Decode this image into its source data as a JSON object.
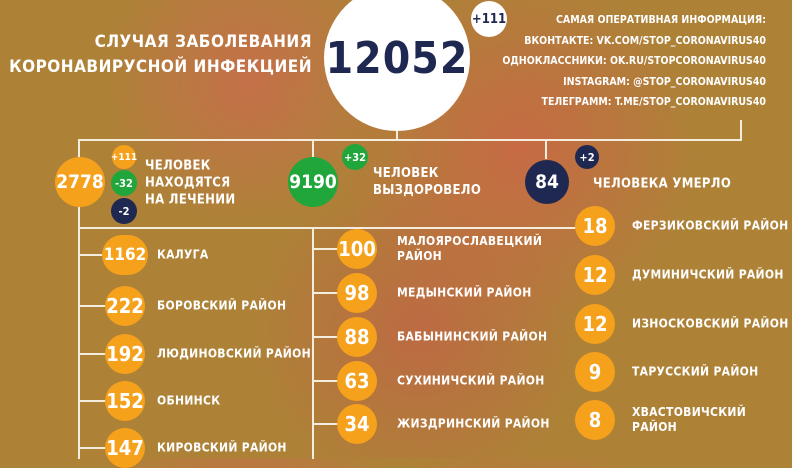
{
  "header": {
    "title_lines": [
      "СЛУЧАЯ ЗАБОЛЕВАНИЯ",
      "КОРОНАВИРУСНОЙ ИНФЕКЦИЕЙ"
    ],
    "total": "12052",
    "total_delta": "+111"
  },
  "info": [
    "САМАЯ ОПЕРАТИВНАЯ ИНФОРМАЦИЯ:",
    "ВКОНТАКТЕ: VK.COM/STOP_CORONAVIRUS40",
    "ОДНОКЛАССНИКИ: OK.RU/STOPCORONAVIRUS40",
    "INSTAGRAM: @STOP_CORONAVIRUS40",
    "ТЕЛЕГРАММ: T.ME/STOP_CORONAVIRUS40"
  ],
  "stats": {
    "treatment": {
      "value": "2778",
      "delta_new": "+111",
      "delta_recovered": "-32",
      "delta_died": "-2",
      "label_lines": [
        "ЧЕЛОВЕК",
        "НАХОДЯТСЯ",
        "НА ЛЕЧЕНИИ"
      ]
    },
    "recovered": {
      "value": "9190",
      "delta": "+32",
      "label_lines": [
        "ЧЕЛОВЕК",
        "ВЫЗДОРОВЕЛО"
      ]
    },
    "died": {
      "value": "84",
      "delta": "+2",
      "label": "ЧЕЛОВЕКА УМЕРЛО"
    }
  },
  "colors": {
    "orange": "#f5a11c",
    "green": "#21a63b",
    "navy": "#1f2851"
  },
  "districts_left": [
    {
      "value": "1162",
      "name": "КАЛУГА"
    },
    {
      "value": "222",
      "name": "БОРОВСКИЙ РАЙОН"
    },
    {
      "value": "192",
      "name": "ЛЮДИНОВСКИЙ РАЙОН"
    },
    {
      "value": "152",
      "name": "ОБНИНСК"
    },
    {
      "value": "147",
      "name": "КИРОВСКИЙ РАЙОН"
    }
  ],
  "districts_middle": [
    {
      "value": "100",
      "name": "МАЛОЯРОСЛАВЕЦКИЙ РАЙОН"
    },
    {
      "value": "98",
      "name": "МЕДЫНСКИЙ РАЙОН"
    },
    {
      "value": "88",
      "name": "БАБЫНИНСКИЙ РАЙОН"
    },
    {
      "value": "63",
      "name": "СУХИНИЧСКИЙ РАЙОН"
    },
    {
      "value": "34",
      "name": "ЖИЗДРИНСКИЙ РАЙОН"
    }
  ],
  "districts_right": [
    {
      "value": "18",
      "name": "ФЕРЗИКОВСКИЙ РАЙОН"
    },
    {
      "value": "12",
      "name": "ДУМИНИЧСКИЙ РАЙОН"
    },
    {
      "value": "12",
      "name": "ИЗНОСКОВСКИЙ РАЙОН"
    },
    {
      "value": "9",
      "name": "ТАРУССКИЙ РАЙОН"
    },
    {
      "value": "8",
      "name": "ХВАСТОВИЧСКИЙ РАЙОН"
    }
  ]
}
